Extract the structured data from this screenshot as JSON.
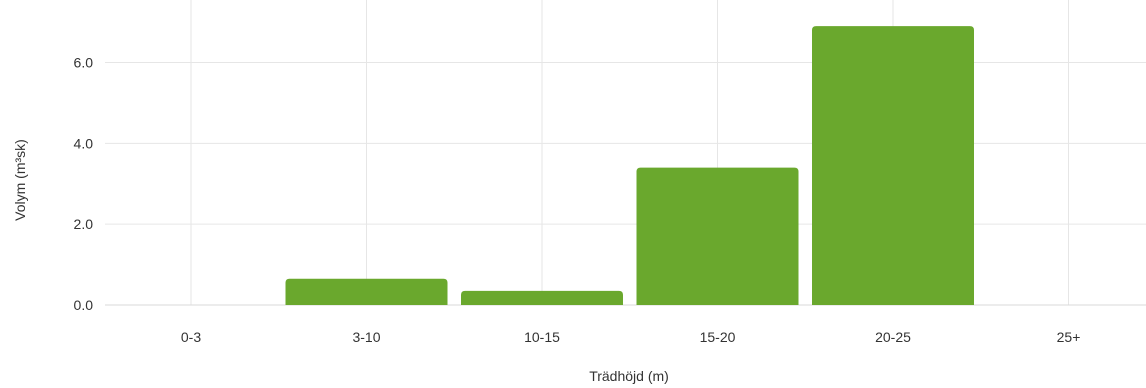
{
  "chart_data": {
    "type": "bar",
    "title": "",
    "xlabel": "Trädhöjd (m)",
    "ylabel": "Volym (m³sk)",
    "categories": [
      "0-3",
      "3-10",
      "10-15",
      "15-20",
      "20-25",
      "25+"
    ],
    "values": [
      0,
      0.65,
      0.35,
      3.4,
      6.9,
      0
    ],
    "ylim": [
      0,
      7.2
    ],
    "yticks": [
      0,
      2,
      4,
      6
    ],
    "ytick_labels": [
      "0.0",
      "2.0",
      "4.0",
      "6.0"
    ],
    "grid": true,
    "legend": "none",
    "bar_color": "#6aa82d"
  }
}
